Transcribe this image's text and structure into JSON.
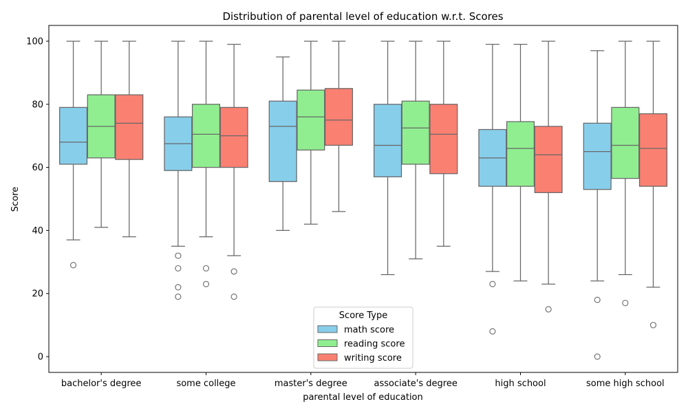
{
  "chart_data": {
    "type": "boxplot",
    "title": "Distribution of parental level of education w.r.t. Scores",
    "xlabel": "parental level of education",
    "ylabel": "Score",
    "ylim": [
      -5,
      105
    ],
    "yticks": [
      0,
      20,
      40,
      60,
      80,
      100
    ],
    "categories": [
      "bachelor's degree",
      "some college",
      "master's degree",
      "associate's degree",
      "high school",
      "some high school"
    ],
    "legend": {
      "title": "Score Type",
      "placement": "lower-center"
    },
    "grid": false,
    "series": [
      {
        "name": "math score",
        "color": "#87CEEB",
        "boxes": [
          {
            "whislo": 37,
            "q1": 61,
            "med": 68,
            "q3": 79,
            "whishi": 100,
            "fliers": [
              29
            ]
          },
          {
            "whislo": 35,
            "q1": 59,
            "med": 67.5,
            "q3": 76,
            "whishi": 100,
            "fliers": [
              32,
              28,
              22,
              19
            ]
          },
          {
            "whislo": 40,
            "q1": 55.5,
            "med": 73,
            "q3": 81,
            "whishi": 95,
            "fliers": []
          },
          {
            "whislo": 26,
            "q1": 57,
            "med": 67,
            "q3": 80,
            "whishi": 100,
            "fliers": []
          },
          {
            "whislo": 27,
            "q1": 54,
            "med": 63,
            "q3": 72,
            "whishi": 99,
            "fliers": [
              23,
              8
            ]
          },
          {
            "whislo": 24,
            "q1": 53,
            "med": 65,
            "q3": 74,
            "whishi": 97,
            "fliers": [
              18,
              0
            ]
          }
        ]
      },
      {
        "name": "reading score",
        "color": "#90EE90",
        "boxes": [
          {
            "whislo": 41,
            "q1": 63,
            "med": 73,
            "q3": 83,
            "whishi": 100,
            "fliers": []
          },
          {
            "whislo": 38,
            "q1": 60,
            "med": 70.5,
            "q3": 80,
            "whishi": 100,
            "fliers": [
              28,
              23
            ]
          },
          {
            "whislo": 42,
            "q1": 65.5,
            "med": 76,
            "q3": 84.5,
            "whishi": 100,
            "fliers": []
          },
          {
            "whislo": 31,
            "q1": 61,
            "med": 72.5,
            "q3": 81,
            "whishi": 100,
            "fliers": []
          },
          {
            "whislo": 24,
            "q1": 54,
            "med": 66,
            "q3": 74.5,
            "whishi": 99,
            "fliers": []
          },
          {
            "whislo": 26,
            "q1": 56.5,
            "med": 67,
            "q3": 79,
            "whishi": 100,
            "fliers": [
              17
            ]
          }
        ]
      },
      {
        "name": "writing score",
        "color": "#FA8072",
        "boxes": [
          {
            "whislo": 38,
            "q1": 62.5,
            "med": 74,
            "q3": 83,
            "whishi": 100,
            "fliers": []
          },
          {
            "whislo": 32,
            "q1": 60,
            "med": 70,
            "q3": 79,
            "whishi": 99,
            "fliers": [
              27,
              19
            ]
          },
          {
            "whislo": 46,
            "q1": 67,
            "med": 75,
            "q3": 85,
            "whishi": 100,
            "fliers": []
          },
          {
            "whislo": 35,
            "q1": 58,
            "med": 70.5,
            "q3": 80,
            "whishi": 100,
            "fliers": []
          },
          {
            "whislo": 23,
            "q1": 52,
            "med": 64,
            "q3": 73,
            "whishi": 100,
            "fliers": [
              15
            ]
          },
          {
            "whislo": 22,
            "q1": 54,
            "med": 66,
            "q3": 77,
            "whishi": 100,
            "fliers": [
              10
            ]
          }
        ]
      }
    ]
  }
}
